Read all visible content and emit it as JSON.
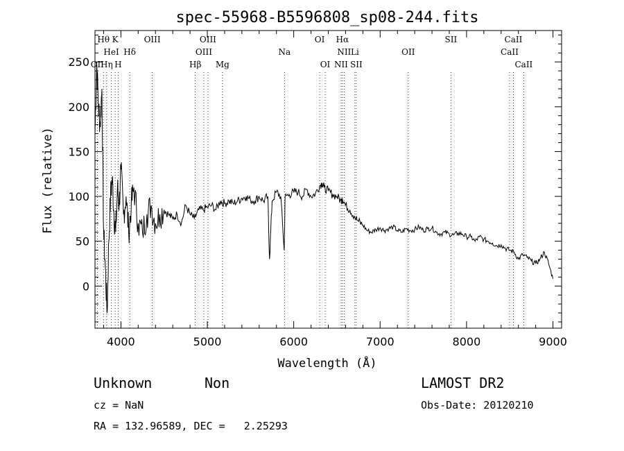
{
  "chart_data": {
    "type": "line",
    "title": "spec-55968-B5596808_sp08-244.fits",
    "xlabel": "Wavelength (Å)",
    "ylabel": "Flux (relative)",
    "xlim": [
      3700,
      9100
    ],
    "ylim": [
      -47,
      285
    ],
    "xticks": [
      4000,
      5000,
      6000,
      7000,
      8000,
      9000
    ],
    "yticks": [
      0,
      50,
      100,
      150,
      200,
      250
    ],
    "grid": false,
    "series": [
      {
        "x": [
          3700,
          3720,
          3740,
          3760,
          3780,
          3800,
          3820,
          3840,
          3860,
          3880,
          3900,
          3920,
          3940,
          3960,
          3980,
          4000,
          4030,
          4060,
          4090,
          4120,
          4150,
          4200,
          4250,
          4300,
          4350,
          4400,
          4450,
          4500,
          4550,
          4600,
          4650,
          4700,
          4750,
          4800,
          4850,
          4900,
          4950,
          5000,
          5050,
          5100,
          5150,
          5200,
          5250,
          5300,
          5350,
          5400,
          5450,
          5500,
          5550,
          5600,
          5650,
          5700,
          5720,
          5750,
          5800,
          5850,
          5890,
          5900,
          5950,
          6000,
          6050,
          6100,
          6150,
          6200,
          6250,
          6300,
          6330,
          6350,
          6400,
          6450,
          6500,
          6550,
          6563,
          6600,
          6650,
          6700,
          6750,
          6800,
          6850,
          6900,
          6950,
          7000,
          7050,
          7100,
          7150,
          7200,
          7250,
          7300,
          7350,
          7400,
          7450,
          7500,
          7550,
          7600,
          7650,
          7700,
          7750,
          7800,
          7850,
          7900,
          7950,
          8000,
          8050,
          8100,
          8150,
          8200,
          8250,
          8300,
          8350,
          8400,
          8450,
          8500,
          8550,
          8600,
          8650,
          8700,
          8750,
          8800,
          8850,
          8900,
          8950,
          9000
        ],
        "values": [
          170,
          250,
          200,
          180,
          220,
          60,
          20,
          -30,
          50,
          100,
          120,
          80,
          60,
          110,
          90,
          130,
          80,
          100,
          60,
          90,
          110,
          70,
          60,
          80,
          90,
          70,
          80,
          85,
          80,
          75,
          80,
          70,
          90,
          80,
          75,
          85,
          85,
          88,
          90,
          85,
          95,
          92,
          95,
          92,
          95,
          98,
          100,
          96,
          95,
          100,
          95,
          100,
          30,
          95,
          105,
          100,
          40,
          100,
          102,
          105,
          105,
          100,
          108,
          100,
          103,
          112,
          115,
          110,
          106,
          102,
          100,
          95,
          98,
          90,
          85,
          78,
          72,
          68,
          62,
          60,
          63,
          65,
          62,
          64,
          66,
          62,
          60,
          64,
          62,
          63,
          66,
          62,
          64,
          65,
          60,
          58,
          60,
          58,
          57,
          59,
          58,
          55,
          55,
          50,
          55,
          52,
          50,
          48,
          45,
          46,
          42,
          40,
          38,
          30,
          35,
          32,
          28,
          25,
          30,
          38,
          25,
          8
        ],
        "color": "#000000"
      }
    ],
    "line_markers": [
      {
        "label": "Hθ",
        "x": 3798,
        "row": 1
      },
      {
        "label": "K",
        "x": 3934,
        "row": 1
      },
      {
        "label": "HeI",
        "x": 3889,
        "row": 2
      },
      {
        "label": "Hδ",
        "x": 4102,
        "row": 2
      },
      {
        "label": "OII",
        "x": 3727,
        "row": 3
      },
      {
        "label": "Hη",
        "x": 3835,
        "row": 3
      },
      {
        "label": "H",
        "x": 3968,
        "row": 3
      },
      {
        "label": "OIII",
        "x": 4363,
        "row": 1
      },
      {
        "label": "OIII",
        "x": 5007,
        "row": 1
      },
      {
        "label": "OIII",
        "x": 4959,
        "row": 2
      },
      {
        "label": "Hβ",
        "x": 4861,
        "row": 3
      },
      {
        "label": "Mg",
        "x": 5175,
        "row": 3
      },
      {
        "label": "Na",
        "x": 5893,
        "row": 2
      },
      {
        "label": "OI",
        "x": 6300,
        "row": 1
      },
      {
        "label": "OI",
        "x": 6364,
        "row": 3
      },
      {
        "label": "Hα",
        "x": 6563,
        "row": 1
      },
      {
        "label": "NII",
        "x": 6583,
        "row": 2
      },
      {
        "label": "Li",
        "x": 6708,
        "row": 2
      },
      {
        "label": "NII",
        "x": 6548,
        "row": 3
      },
      {
        "label": "SII",
        "x": 6724,
        "row": 3
      },
      {
        "label": "OII",
        "x": 7325,
        "row": 2
      },
      {
        "label": "SII",
        "x": 7819,
        "row": 1
      },
      {
        "label": "CaII",
        "x": 8542,
        "row": 1
      },
      {
        "label": "CaII",
        "x": 8498,
        "row": 2
      },
      {
        "label": "CaII",
        "x": 8662,
        "row": 3
      }
    ]
  },
  "info": {
    "class": "Unknown",
    "subclass": "Non",
    "survey": "LAMOST DR2",
    "cz": "cz = NaN",
    "obs_date": "Obs-Date: 20120210",
    "radec": "RA = 132.96589, DEC =   2.25293"
  }
}
